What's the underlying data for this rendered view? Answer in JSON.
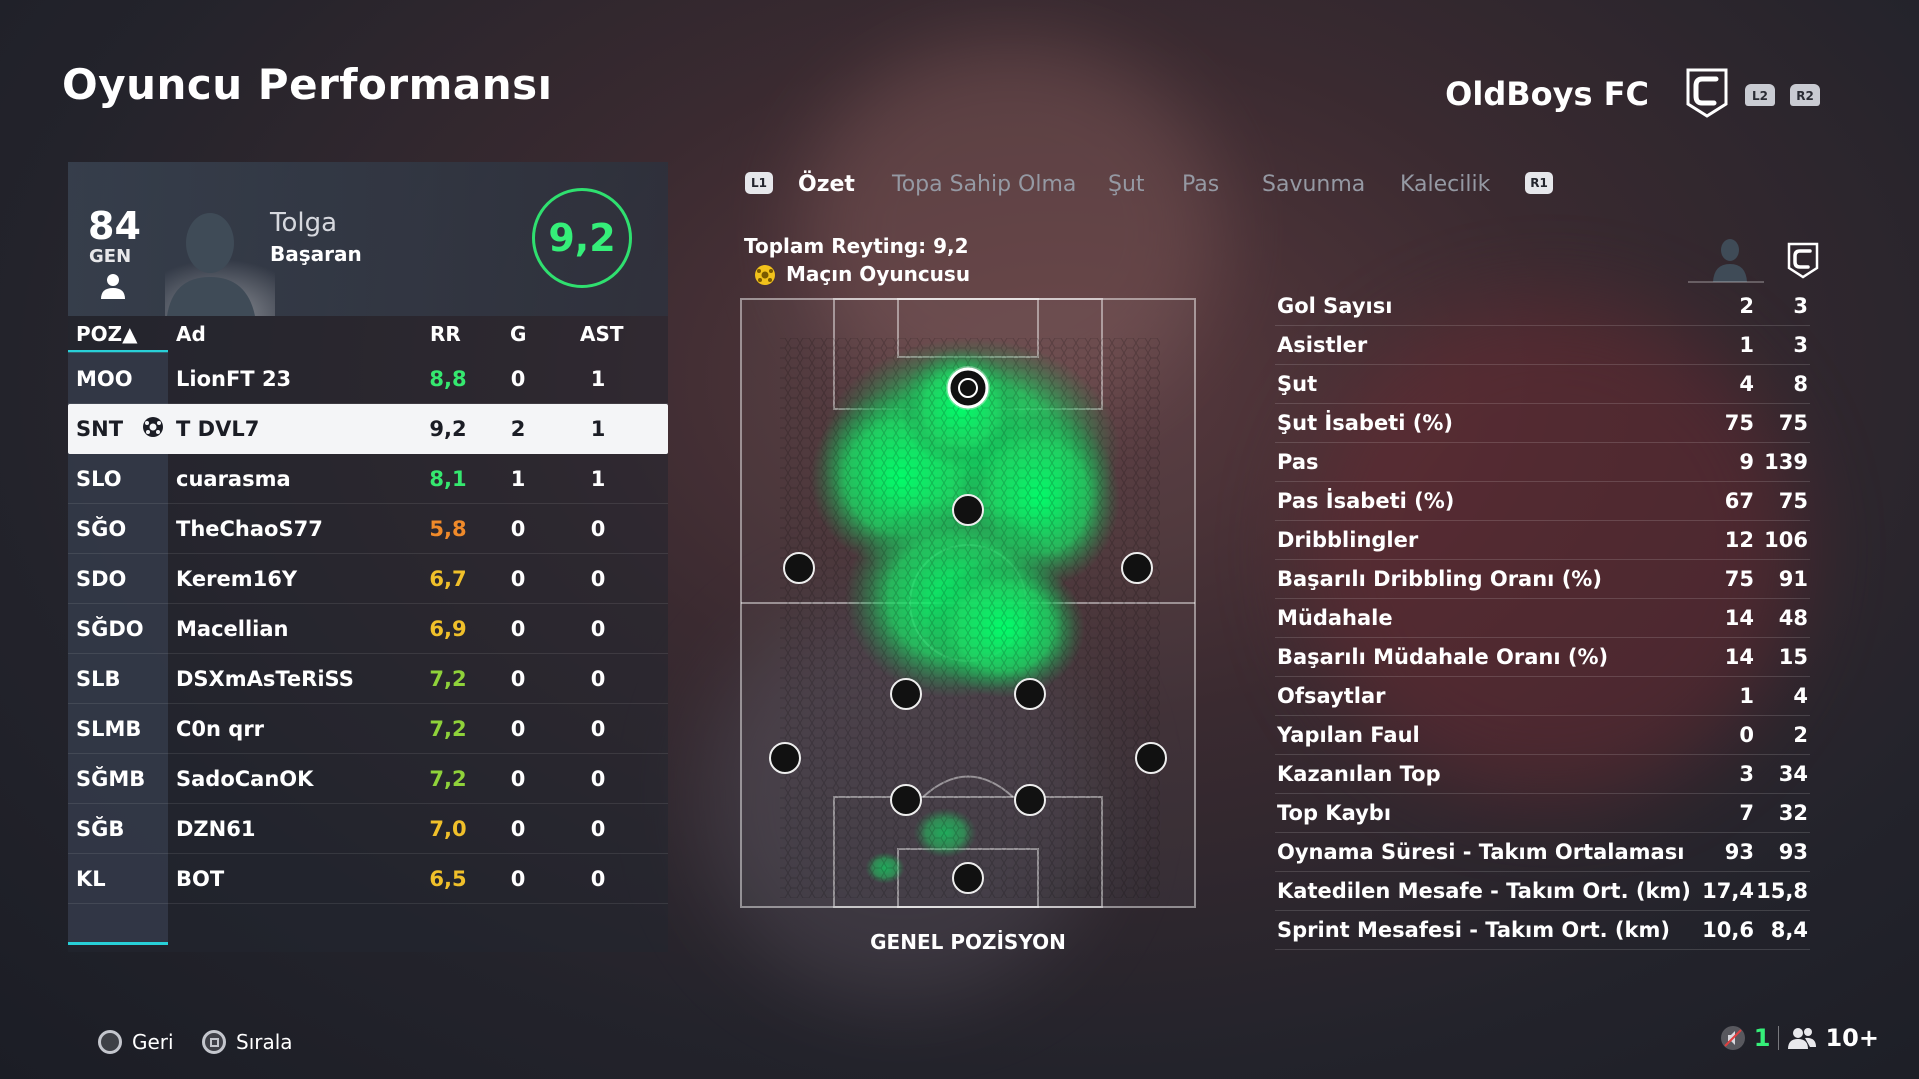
{
  "header": {
    "title": "Oyuncu Performansı",
    "club_name": "OldBoys FC",
    "trigger_left": "L2",
    "trigger_right": "R2"
  },
  "player": {
    "overall": "84",
    "overall_label": "GEN",
    "first_name": "Tolga",
    "last_name": "Başaran",
    "rating": "9,2"
  },
  "table": {
    "headers": {
      "pos": "POZ▲",
      "name": "Ad",
      "rr": "RR",
      "g": "G",
      "ast": "AST"
    },
    "rows": [
      {
        "pos": "MOO",
        "name": "LionFT 23",
        "rr": "8,8",
        "g": "0",
        "ast": "1",
        "rr_color": "#35e86f"
      },
      {
        "pos": "SNT",
        "name": "T DVL7",
        "rr": "9,2",
        "g": "2",
        "ast": "1",
        "rr_color": "#1b1d25"
      },
      {
        "pos": "SLO",
        "name": "cuarasma",
        "rr": "8,1",
        "g": "1",
        "ast": "1",
        "rr_color": "#35e86f"
      },
      {
        "pos": "SĞO",
        "name": "TheChaoS77",
        "rr": "5,8",
        "g": "0",
        "ast": "0",
        "rr_color": "#f08a2a"
      },
      {
        "pos": "SDO",
        "name": "Kerem16Y",
        "rr": "6,7",
        "g": "0",
        "ast": "0",
        "rr_color": "#f0c02a"
      },
      {
        "pos": "SĞDO",
        "name": "Macellian",
        "rr": "6,9",
        "g": "0",
        "ast": "0",
        "rr_color": "#f0c02a"
      },
      {
        "pos": "SLB",
        "name": "DSXmAsTeRiSS",
        "rr": "7,2",
        "g": "0",
        "ast": "0",
        "rr_color": "#8fd23a"
      },
      {
        "pos": "SLMB",
        "name": "C0n qrr",
        "rr": "7,2",
        "g": "0",
        "ast": "0",
        "rr_color": "#8fd23a"
      },
      {
        "pos": "SĞMB",
        "name": "SadoCanOK",
        "rr": "7,2",
        "g": "0",
        "ast": "0",
        "rr_color": "#8fd23a"
      },
      {
        "pos": "SĞB",
        "name": "DZN61",
        "rr": "7,0",
        "g": "0",
        "ast": "0",
        "rr_color": "#f0c02a"
      },
      {
        "pos": "KL",
        "name": "BOT",
        "rr": "6,5",
        "g": "0",
        "ast": "0",
        "rr_color": "#f0c02a"
      }
    ]
  },
  "tabs": {
    "left_shoulder": "L1",
    "right_shoulder": "R1",
    "items": [
      "Özet",
      "Topa Sahip Olma",
      "Şut",
      "Pas",
      "Savunma",
      "Kalecilik"
    ],
    "active": "Özet"
  },
  "summary": {
    "total_rating": "Toplam Reyting: 9,2",
    "motm": "Maçın Oyuncusu",
    "pitch_label": "GENEL POZİSYON"
  },
  "stats": [
    {
      "label": "Gol Sayısı",
      "player": "2",
      "team": "3"
    },
    {
      "label": "Asistler",
      "player": "1",
      "team": "3"
    },
    {
      "label": "Şut",
      "player": "4",
      "team": "8"
    },
    {
      "label": "Şut İsabeti (%)",
      "player": "75",
      "team": "75"
    },
    {
      "label": "Pas",
      "player": "9",
      "team": "139"
    },
    {
      "label": "Pas İsabeti (%)",
      "player": "67",
      "team": "75"
    },
    {
      "label": "Dribblingler",
      "player": "12",
      "team": "106"
    },
    {
      "label": "Başarılı Dribbling Oranı (%)",
      "player": "75",
      "team": "91"
    },
    {
      "label": "Müdahale",
      "player": "14",
      "team": "48"
    },
    {
      "label": "Başarılı Müdahale Oranı (%)",
      "player": "14",
      "team": "15"
    },
    {
      "label": "Ofsaytlar",
      "player": "1",
      "team": "4"
    },
    {
      "label": "Yapılan Faul",
      "player": "0",
      "team": "2"
    },
    {
      "label": "Kazanılan Top",
      "player": "3",
      "team": "34"
    },
    {
      "label": "Top Kaybı",
      "player": "7",
      "team": "32"
    },
    {
      "label": "Oynama Süresi - Takım Ortalaması",
      "player": "93",
      "team": "93"
    },
    {
      "label": "Katedilen Mesafe - Takım Ort. (km)",
      "player": "17,4",
      "team": "15,8"
    },
    {
      "label": "Sprint Mesafesi - Takım Ort. (km)",
      "player": "10,6",
      "team": "8,4"
    }
  ],
  "footer": {
    "back_label": "Geri",
    "sort_label": "Sırala",
    "count": "1",
    "players_count": "10+"
  },
  "colors": {
    "accent": "#28d0d8",
    "rating_green": "#35ef79"
  }
}
